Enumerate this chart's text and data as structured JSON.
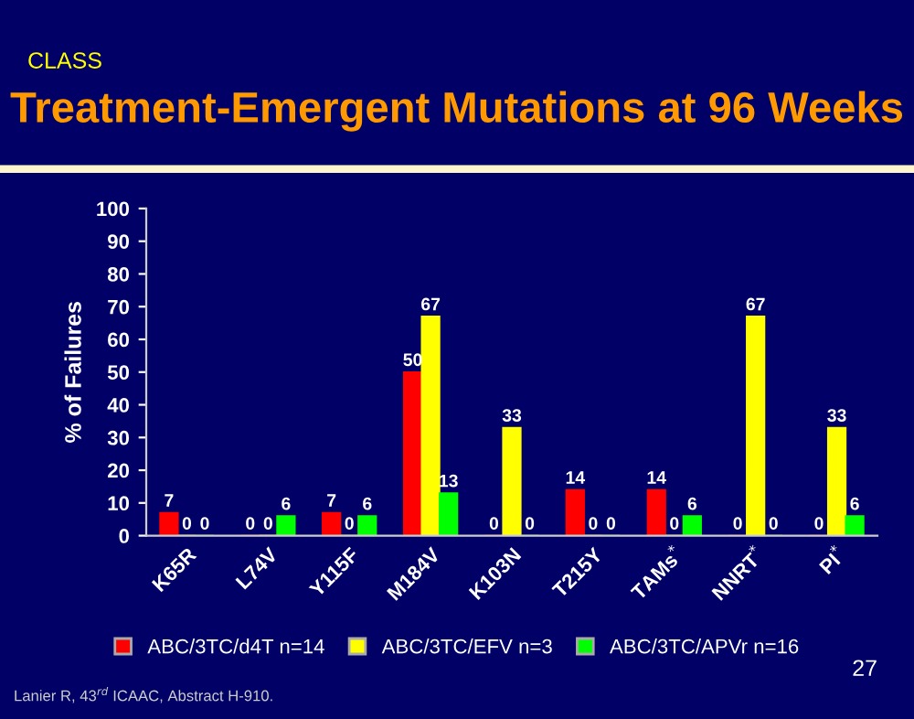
{
  "chart_data": {
    "type": "bar",
    "title": "Treatment-Emergent Mutations at 96 Weeks",
    "subtitle": "CLASS",
    "ylabel": "% of Failures",
    "categories": [
      "K65R",
      "L74V",
      "Y115F",
      "M184V",
      "K103N",
      "T215Y",
      "TAMs$^{*}$",
      "NNRT$^{*}$",
      "PI$^{*}$"
    ],
    "series": [
      {
        "name": "ABC/3TC/d4T n=14",
        "color": "#ff0000",
        "values": [
          7,
          0,
          7,
          50,
          0,
          14,
          14,
          0,
          0
        ]
      },
      {
        "name": "ABC/3TC/EFV n=3",
        "color": "#ffff00",
        "values": [
          0,
          0,
          0,
          67,
          33,
          0,
          0,
          67,
          33
        ]
      },
      {
        "name": "ABC/3TC/APVr n=16",
        "color": "#00ff00",
        "values": [
          0,
          6,
          6,
          13,
          0,
          0,
          6,
          0,
          6
        ]
      }
    ],
    "ylim": [
      0,
      100
    ],
    "yticks": [
      0,
      10,
      20,
      30,
      40,
      50,
      60,
      70,
      80,
      90,
      100
    ],
    "grid": false,
    "legend": "bottom",
    "data_labels": true,
    "annotations": [
      "Lanier R, 43$^{rd}$ ICAAC, Abstract H-910.",
      "27"
    ]
  }
}
